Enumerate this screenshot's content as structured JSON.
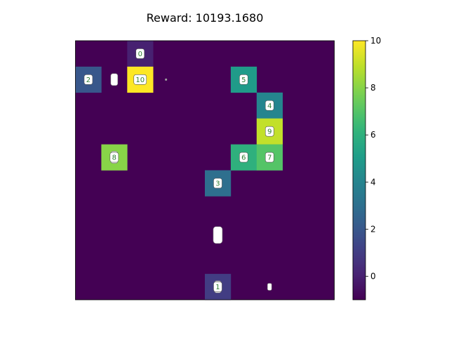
{
  "title": "Reward: 10193.1680",
  "chart_data": {
    "type": "heatmap",
    "title": "Reward: 10193.1680",
    "grid_size": [
      10,
      10
    ],
    "colormap": "viridis",
    "vmin": -1,
    "vmax": 10,
    "background_value": -1,
    "colorbar_ticks": [
      0,
      2,
      4,
      6,
      8,
      10
    ],
    "cells": [
      {
        "row": 0,
        "col": 2,
        "value": 0,
        "label": "0"
      },
      {
        "row": 1,
        "col": 0,
        "value": 2,
        "label": "2"
      },
      {
        "row": 1,
        "col": 2,
        "value": 10,
        "label": "10"
      },
      {
        "row": 1,
        "col": 6,
        "value": 5,
        "label": "5"
      },
      {
        "row": 2,
        "col": 7,
        "value": 4,
        "label": "4"
      },
      {
        "row": 3,
        "col": 7,
        "value": 9,
        "label": "9"
      },
      {
        "row": 4,
        "col": 1,
        "value": 8,
        "label": "8"
      },
      {
        "row": 4,
        "col": 6,
        "value": 6,
        "label": "6"
      },
      {
        "row": 4,
        "col": 7,
        "value": 7,
        "label": "7"
      },
      {
        "row": 5,
        "col": 5,
        "value": 3,
        "label": "3"
      },
      {
        "row": 9,
        "col": 5,
        "value": 1,
        "label": "1"
      }
    ],
    "markers": [
      {
        "row": 1,
        "col": 1,
        "size": "medium"
      },
      {
        "row": 1,
        "col": 3,
        "size": "dot"
      },
      {
        "row": 4,
        "col": 1,
        "size": "medium"
      },
      {
        "row": 7,
        "col": 5,
        "size": "large"
      },
      {
        "row": 9,
        "col": 5,
        "size": "medium"
      },
      {
        "row": 9,
        "col": 7,
        "size": "small"
      }
    ]
  }
}
